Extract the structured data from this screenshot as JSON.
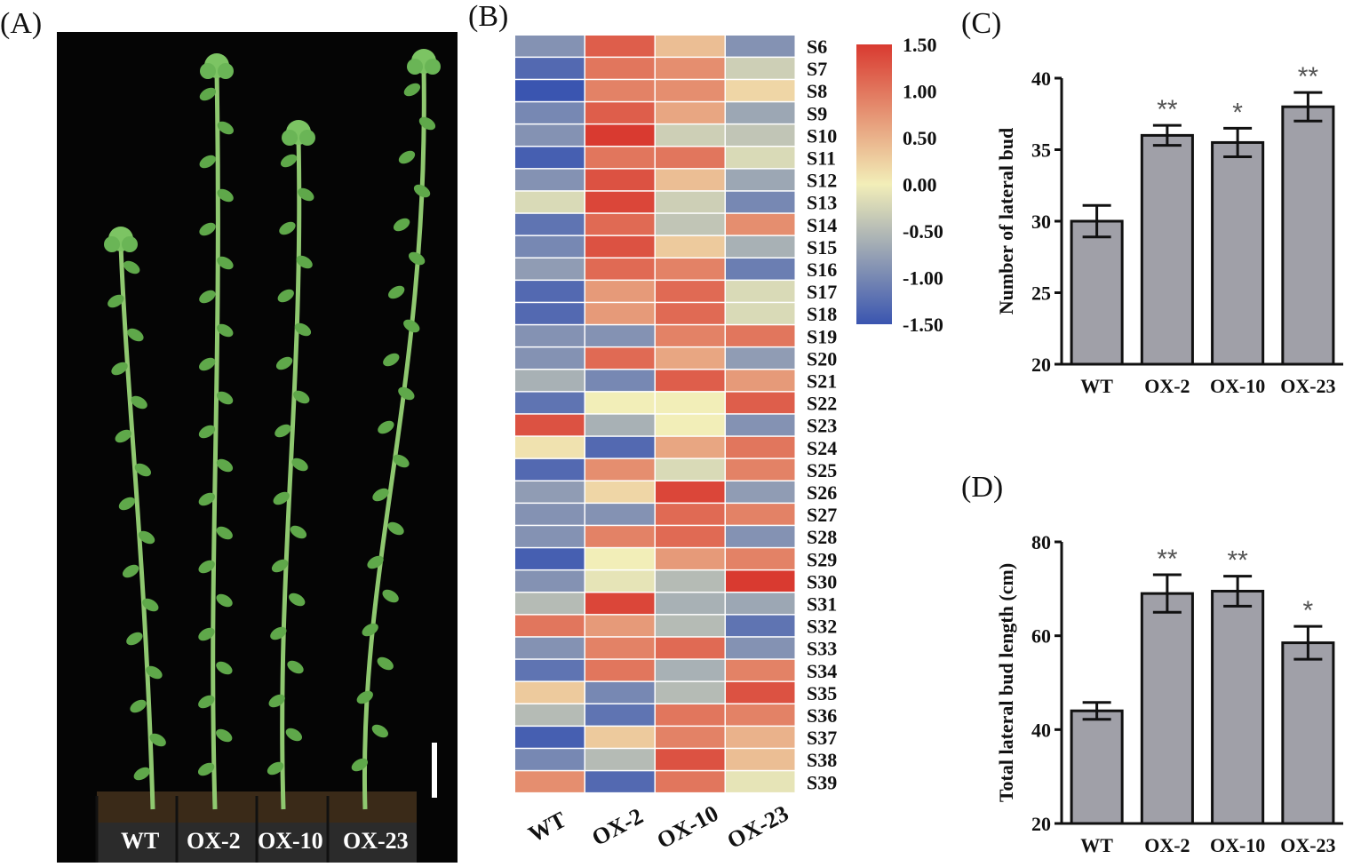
{
  "panel_letters": {
    "a": "(A)",
    "b": "(B)",
    "c": "(C)",
    "d": "(D)"
  },
  "photo": {
    "plant_labels": [
      "WT",
      "OX-2",
      "OX-10",
      "OX-23"
    ],
    "colors": {
      "background": "#050505",
      "stem": "#8fc870",
      "leaf": "#5fa84a",
      "soil": "#3a2a18",
      "pot": "#2b2b2b"
    }
  },
  "chart_data": [
    {
      "type": "heatmap",
      "columns": [
        "WT",
        "OX-2",
        "OX-10",
        "OX-23"
      ],
      "rows": [
        "S6",
        "S7",
        "S8",
        "S9",
        "S10",
        "S11",
        "S12",
        "S13",
        "S14",
        "S15",
        "S16",
        "S17",
        "S18",
        "S19",
        "S20",
        "S21",
        "S22",
        "S23",
        "S24",
        "S25",
        "S26",
        "S27",
        "S28",
        "S29",
        "S30",
        "S31",
        "S32",
        "S33",
        "S34",
        "S35",
        "S36",
        "S37",
        "S38",
        "S39"
      ],
      "values": [
        [
          -0.9,
          1.2,
          0.4,
          -0.9
        ],
        [
          -1.3,
          1.0,
          0.8,
          -0.3
        ],
        [
          -1.5,
          0.9,
          0.8,
          0.2
        ],
        [
          -1.0,
          1.2,
          0.6,
          -0.7
        ],
        [
          -0.9,
          1.5,
          -0.3,
          -0.4
        ],
        [
          -1.4,
          1.0,
          1.0,
          -0.2
        ],
        [
          -0.9,
          1.3,
          0.4,
          -0.7
        ],
        [
          -0.2,
          1.4,
          -0.3,
          -1.0
        ],
        [
          -1.2,
          1.1,
          -0.4,
          0.8
        ],
        [
          -1.0,
          1.3,
          0.3,
          -0.6
        ],
        [
          -0.8,
          1.1,
          0.9,
          -1.1
        ],
        [
          -1.3,
          0.7,
          1.1,
          -0.2
        ],
        [
          -1.3,
          0.7,
          1.1,
          -0.2
        ],
        [
          -0.9,
          -0.9,
          0.9,
          1.0
        ],
        [
          -0.9,
          1.1,
          0.6,
          -0.8
        ],
        [
          -0.6,
          -1.0,
          1.2,
          0.7
        ],
        [
          -1.2,
          0.0,
          0.0,
          1.2
        ],
        [
          1.3,
          -0.6,
          0.0,
          -0.9
        ],
        [
          0.1,
          -1.3,
          0.6,
          1.0
        ],
        [
          -1.3,
          0.8,
          -0.2,
          0.9
        ],
        [
          -0.8,
          0.2,
          1.4,
          -0.8
        ],
        [
          -0.9,
          -0.9,
          1.1,
          0.9
        ],
        [
          -0.9,
          0.9,
          1.1,
          -0.9
        ],
        [
          -1.4,
          0.0,
          0.7,
          0.9
        ],
        [
          -0.9,
          -0.1,
          -0.5,
          1.5
        ],
        [
          -0.5,
          1.4,
          -0.6,
          -0.7
        ],
        [
          1.0,
          0.7,
          -0.5,
          -1.2
        ],
        [
          -0.9,
          0.9,
          1.1,
          -0.9
        ],
        [
          -1.2,
          1.0,
          -0.6,
          0.9
        ],
        [
          0.3,
          -1.0,
          -0.5,
          1.3
        ],
        [
          -0.5,
          -1.2,
          1.0,
          0.9
        ],
        [
          -1.4,
          0.3,
          0.9,
          0.5
        ],
        [
          -1.0,
          -0.5,
          1.3,
          0.4
        ],
        [
          0.8,
          -1.3,
          1.0,
          -0.1
        ]
      ],
      "color_scale": {
        "min": -1.5,
        "max": 1.5,
        "low": "#3a55b0",
        "mid": "#f2eeb8",
        "high": "#d93a30"
      },
      "colorbar_ticks": [
        "1.50",
        "1.00",
        "0.50",
        "0.00",
        "-0.50",
        "-1.00",
        "-1.50"
      ]
    },
    {
      "type": "bar",
      "categories": [
        "WT",
        "OX-2",
        "OX-10",
        "OX-23"
      ],
      "values": [
        30,
        36,
        35.5,
        38
      ],
      "errors": [
        1.1,
        0.7,
        1.0,
        1.0
      ],
      "significance": [
        "",
        "**",
        "*",
        "**"
      ],
      "ylabel": "Number of lateral bud",
      "ylim": [
        20,
        40
      ],
      "yticks": [
        "20",
        "25",
        "30",
        "35",
        "40"
      ],
      "bar_color": "#a0a0a8"
    },
    {
      "type": "bar",
      "categories": [
        "WT",
        "OX-2",
        "OX-10",
        "OX-23"
      ],
      "values": [
        44,
        69,
        69.5,
        58.5
      ],
      "errors": [
        1.8,
        4.0,
        3.2,
        3.5
      ],
      "significance": [
        "",
        "**",
        "**",
        "*"
      ],
      "ylabel": "Total lateral bud length (cm)",
      "ylim": [
        20,
        80
      ],
      "yticks": [
        "20",
        "40",
        "60",
        "80"
      ],
      "bar_color": "#a0a0a8"
    }
  ]
}
